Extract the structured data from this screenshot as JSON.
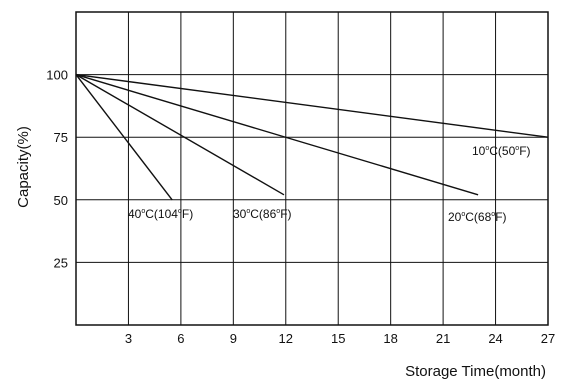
{
  "chart_data": {
    "type": "line",
    "title": "",
    "xlabel": "Storage  Time(month)",
    "ylabel": "Capacity(%)",
    "xlim": [
      0,
      27
    ],
    "ylim": [
      0,
      125
    ],
    "x_ticks": [
      3,
      6,
      9,
      12,
      15,
      18,
      21,
      24,
      27
    ],
    "y_ticks": [
      25,
      50,
      75,
      100
    ],
    "grid": true,
    "legend": "none",
    "series": [
      {
        "name": "10°C(50°F)",
        "label_parts": [
          "10",
          "C(50",
          "F)"
        ],
        "points": [
          [
            0,
            100
          ],
          [
            27,
            75
          ]
        ]
      },
      {
        "name": "20°C(68°F)",
        "label_parts": [
          "20",
          "C(68",
          "F)"
        ],
        "points": [
          [
            0,
            100
          ],
          [
            23,
            52
          ]
        ]
      },
      {
        "name": "30°C(86°F)",
        "label_parts": [
          "30",
          "C(86",
          "F)"
        ],
        "points": [
          [
            0,
            100
          ],
          [
            11.9,
            52
          ]
        ]
      },
      {
        "name": "40°C(104°F)",
        "label_parts": [
          "40",
          "C(104",
          "F)"
        ],
        "points": [
          [
            0,
            100
          ],
          [
            5.5,
            50
          ]
        ]
      }
    ],
    "colors": {
      "line": "#111111",
      "grid": "#111111",
      "background": "#ffffff"
    }
  }
}
